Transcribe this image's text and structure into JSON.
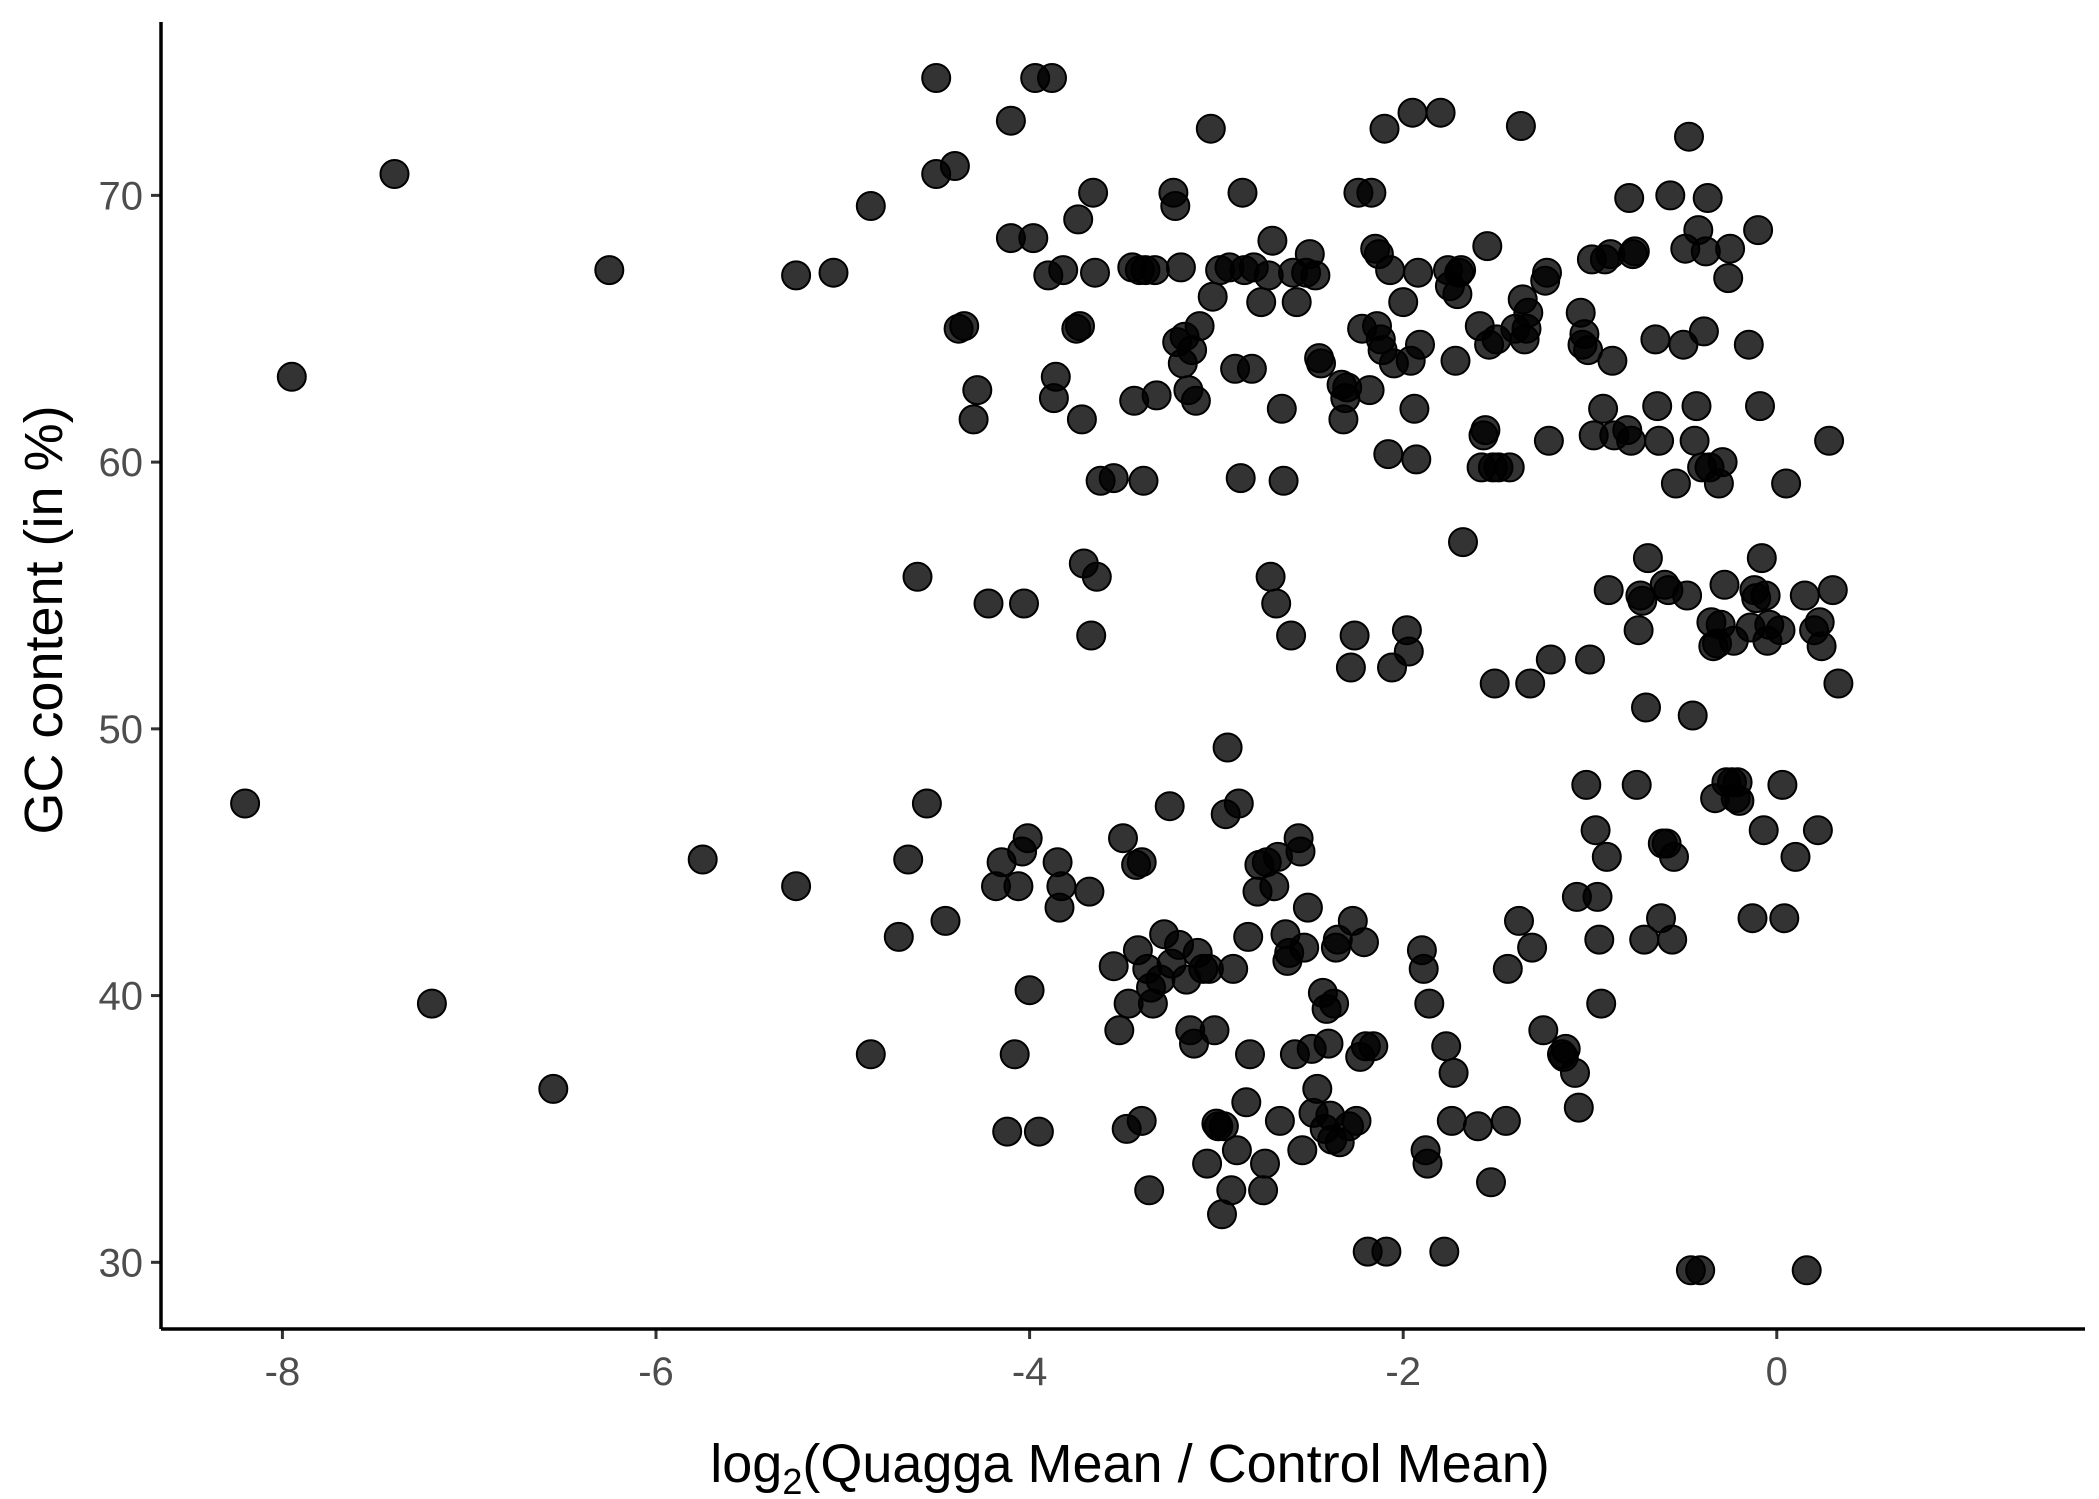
{
  "chart_data": {
    "type": "scatter",
    "title": "",
    "xlabel": {
      "prefix": "log",
      "subscript": "2",
      "body": "(Quagga Mean / Control Mean)"
    },
    "ylabel": "GC content (in %)",
    "xlim": [
      -8.65,
      1.65
    ],
    "ylim": [
      27.5,
      76.5
    ],
    "xticks": [
      {
        "value": -8,
        "label": "-8"
      },
      {
        "value": -6,
        "label": "-6"
      },
      {
        "value": -4,
        "label": "-4"
      },
      {
        "value": -2,
        "label": "-2"
      },
      {
        "value": 0,
        "label": "0"
      }
    ],
    "yticks": [
      {
        "value": 30,
        "label": "30"
      },
      {
        "value": 40,
        "label": "40"
      },
      {
        "value": 50,
        "label": "50"
      },
      {
        "value": 60,
        "label": "60"
      },
      {
        "value": 70,
        "label": "70"
      }
    ],
    "grid": false,
    "point_color": "#000000",
    "point_opacity": 0.8,
    "points": [
      [
        -8.2,
        47.2
      ],
      [
        -7.95,
        63.2
      ],
      [
        -7.4,
        70.8
      ],
      [
        -7.2,
        39.7
      ],
      [
        -6.55,
        36.5
      ],
      [
        -6.25,
        67.2
      ],
      [
        -5.75,
        45.1
      ],
      [
        -5.25,
        44.1
      ],
      [
        -5.25,
        67.0
      ],
      [
        -5.05,
        67.1
      ],
      [
        -4.85,
        69.6
      ],
      [
        -4.85,
        37.8
      ],
      [
        -4.7,
        42.2
      ],
      [
        -4.65,
        45.1
      ],
      [
        -4.6,
        55.7
      ],
      [
        -4.55,
        47.2
      ],
      [
        -4.5,
        74.4
      ],
      [
        -4.5,
        70.8
      ],
      [
        -4.45,
        42.8
      ],
      [
        -4.4,
        71.1
      ],
      [
        -4.38,
        65.0
      ],
      [
        -4.35,
        65.1
      ],
      [
        -4.3,
        61.6
      ],
      [
        -4.28,
        62.7
      ],
      [
        -4.22,
        54.7
      ],
      [
        -4.18,
        44.1
      ],
      [
        -4.15,
        45.0
      ],
      [
        -4.12,
        34.9
      ],
      [
        -4.1,
        72.8
      ],
      [
        -4.1,
        68.4
      ],
      [
        -4.08,
        37.8
      ],
      [
        -4.06,
        44.1
      ],
      [
        -4.04,
        45.4
      ],
      [
        -4.03,
        54.7
      ],
      [
        -4.01,
        45.9
      ],
      [
        -4.0,
        40.2
      ],
      [
        -3.98,
        68.4
      ],
      [
        -3.97,
        74.4
      ],
      [
        -3.95,
        34.9
      ],
      [
        -3.9,
        67.0
      ],
      [
        -3.88,
        74.4
      ],
      [
        -3.87,
        62.4
      ],
      [
        -3.86,
        63.2
      ],
      [
        -3.85,
        45.0
      ],
      [
        -3.84,
        43.3
      ],
      [
        -3.83,
        44.1
      ],
      [
        -3.82,
        67.2
      ],
      [
        -3.75,
        65.0
      ],
      [
        -3.74,
        69.1
      ],
      [
        -3.73,
        65.1
      ],
      [
        -3.72,
        61.6
      ],
      [
        -3.71,
        56.2
      ],
      [
        -3.68,
        43.9
      ],
      [
        -3.67,
        53.5
      ],
      [
        -3.66,
        70.1
      ],
      [
        -3.65,
        67.1
      ],
      [
        -3.64,
        55.7
      ],
      [
        -3.62,
        59.3
      ],
      [
        -3.55,
        59.4
      ],
      [
        -3.55,
        41.1
      ],
      [
        -3.52,
        38.7
      ],
      [
        -3.5,
        45.9
      ],
      [
        -3.48,
        35.0
      ],
      [
        -3.47,
        39.7
      ],
      [
        -3.45,
        67.3
      ],
      [
        -3.44,
        62.3
      ],
      [
        -3.43,
        44.9
      ],
      [
        -3.42,
        41.7
      ],
      [
        -3.41,
        67.2
      ],
      [
        -3.4,
        45.0
      ],
      [
        -3.4,
        35.3
      ],
      [
        -3.39,
        59.3
      ],
      [
        -3.38,
        67.2
      ],
      [
        -3.37,
        41.0
      ],
      [
        -3.36,
        32.7
      ],
      [
        -3.35,
        40.3
      ],
      [
        -3.34,
        39.7
      ],
      [
        -3.33,
        67.2
      ],
      [
        -3.32,
        62.5
      ],
      [
        -3.3,
        40.6
      ],
      [
        -3.28,
        42.3
      ],
      [
        -3.25,
        47.1
      ],
      [
        -3.24,
        41.2
      ],
      [
        -3.23,
        70.1
      ],
      [
        -3.22,
        69.6
      ],
      [
        -3.21,
        64.5
      ],
      [
        -3.2,
        41.9
      ],
      [
        -3.19,
        67.3
      ],
      [
        -3.18,
        63.7
      ],
      [
        -3.17,
        64.7
      ],
      [
        -3.16,
        40.6
      ],
      [
        -3.15,
        62.7
      ],
      [
        -3.14,
        38.7
      ],
      [
        -3.13,
        64.2
      ],
      [
        -3.12,
        38.2
      ],
      [
        -3.11,
        62.3
      ],
      [
        -3.1,
        41.6
      ],
      [
        -3.09,
        65.1
      ],
      [
        -3.07,
        41.0
      ],
      [
        -3.05,
        33.7
      ],
      [
        -3.04,
        41.0
      ],
      [
        -3.03,
        72.5
      ],
      [
        -3.02,
        66.2
      ],
      [
        -3.01,
        38.7
      ],
      [
        -3.0,
        35.2
      ],
      [
        -2.99,
        35.1
      ],
      [
        -2.98,
        67.2
      ],
      [
        -2.97,
        31.8
      ],
      [
        -2.96,
        35.1
      ],
      [
        -2.95,
        46.8
      ],
      [
        -2.94,
        49.3
      ],
      [
        -2.93,
        67.3
      ],
      [
        -2.92,
        32.7
      ],
      [
        -2.91,
        41.0
      ],
      [
        -2.9,
        63.5
      ],
      [
        -2.89,
        34.2
      ],
      [
        -2.88,
        47.2
      ],
      [
        -2.87,
        59.4
      ],
      [
        -2.86,
        70.1
      ],
      [
        -2.85,
        67.2
      ],
      [
        -2.84,
        36.0
      ],
      [
        -2.83,
        42.2
      ],
      [
        -2.82,
        37.8
      ],
      [
        -2.81,
        63.5
      ],
      [
        -2.8,
        67.3
      ],
      [
        -2.78,
        43.9
      ],
      [
        -2.77,
        44.9
      ],
      [
        -2.76,
        66.0
      ],
      [
        -2.75,
        32.7
      ],
      [
        -2.74,
        33.7
      ],
      [
        -2.73,
        45.0
      ],
      [
        -2.72,
        67.0
      ],
      [
        -2.71,
        55.7
      ],
      [
        -2.7,
        68.3
      ],
      [
        -2.69,
        44.1
      ],
      [
        -2.68,
        54.7
      ],
      [
        -2.67,
        45.2
      ],
      [
        -2.66,
        35.3
      ],
      [
        -2.65,
        62.0
      ],
      [
        -2.64,
        59.3
      ],
      [
        -2.63,
        42.3
      ],
      [
        -2.62,
        41.3
      ],
      [
        -2.61,
        41.6
      ],
      [
        -2.6,
        53.5
      ],
      [
        -2.59,
        67.1
      ],
      [
        -2.58,
        37.8
      ],
      [
        -2.57,
        66.0
      ],
      [
        -2.56,
        45.9
      ],
      [
        -2.55,
        45.4
      ],
      [
        -2.54,
        34.2
      ],
      [
        -2.53,
        41.8
      ],
      [
        -2.52,
        67.1
      ],
      [
        -2.51,
        43.3
      ],
      [
        -2.5,
        67.8
      ],
      [
        -2.49,
        38.0
      ],
      [
        -2.48,
        35.6
      ],
      [
        -2.47,
        67.0
      ],
      [
        -2.46,
        36.5
      ],
      [
        -2.45,
        63.9
      ],
      [
        -2.44,
        63.7
      ],
      [
        -2.43,
        40.1
      ],
      [
        -2.42,
        35.0
      ],
      [
        -2.41,
        39.5
      ],
      [
        -2.4,
        38.2
      ],
      [
        -2.39,
        35.5
      ],
      [
        -2.38,
        34.6
      ],
      [
        -2.37,
        39.7
      ],
      [
        -2.36,
        41.8
      ],
      [
        -2.35,
        42.1
      ],
      [
        -2.34,
        34.5
      ],
      [
        -2.33,
        62.9
      ],
      [
        -2.32,
        61.6
      ],
      [
        -2.31,
        62.4
      ],
      [
        -2.3,
        62.8
      ],
      [
        -2.29,
        35.1
      ],
      [
        -2.28,
        52.3
      ],
      [
        -2.27,
        42.8
      ],
      [
        -2.26,
        53.5
      ],
      [
        -2.25,
        35.3
      ],
      [
        -2.24,
        70.1
      ],
      [
        -2.23,
        37.7
      ],
      [
        -2.22,
        65.0
      ],
      [
        -2.21,
        42.0
      ],
      [
        -2.2,
        38.1
      ],
      [
        -2.19,
        30.4
      ],
      [
        -2.18,
        62.7
      ],
      [
        -2.17,
        70.1
      ],
      [
        -2.16,
        38.1
      ],
      [
        -2.15,
        68.0
      ],
      [
        -2.14,
        65.1
      ],
      [
        -2.13,
        67.8
      ],
      [
        -2.12,
        64.6
      ],
      [
        -2.11,
        64.2
      ],
      [
        -2.1,
        72.5
      ],
      [
        -2.09,
        30.4
      ],
      [
        -2.08,
        60.3
      ],
      [
        -2.07,
        67.2
      ],
      [
        -2.06,
        52.3
      ],
      [
        -2.05,
        63.7
      ],
      [
        -2.0,
        66.0
      ],
      [
        -1.98,
        53.7
      ],
      [
        -1.97,
        52.9
      ],
      [
        -1.96,
        63.8
      ],
      [
        -1.95,
        73.1
      ],
      [
        -1.94,
        62.0
      ],
      [
        -1.93,
        60.1
      ],
      [
        -1.92,
        67.1
      ],
      [
        -1.91,
        64.4
      ],
      [
        -1.9,
        41.7
      ],
      [
        -1.89,
        41.0
      ],
      [
        -1.88,
        34.2
      ],
      [
        -1.87,
        33.7
      ],
      [
        -1.86,
        39.7
      ],
      [
        -1.8,
        73.1
      ],
      [
        -1.78,
        30.4
      ],
      [
        -1.77,
        38.1
      ],
      [
        -1.76,
        67.2
      ],
      [
        -1.75,
        66.6
      ],
      [
        -1.74,
        35.3
      ],
      [
        -1.73,
        37.1
      ],
      [
        -1.72,
        63.8
      ],
      [
        -1.71,
        66.3
      ],
      [
        -1.7,
        67.1
      ],
      [
        -1.69,
        67.2
      ],
      [
        -1.68,
        57.0
      ],
      [
        -1.6,
        35.1
      ],
      [
        -1.59,
        65.1
      ],
      [
        -1.58,
        59.8
      ],
      [
        -1.57,
        61.0
      ],
      [
        -1.56,
        61.2
      ],
      [
        -1.55,
        68.1
      ],
      [
        -1.54,
        64.4
      ],
      [
        -1.53,
        33.0
      ],
      [
        -1.52,
        59.8
      ],
      [
        -1.51,
        51.7
      ],
      [
        -1.5,
        64.6
      ],
      [
        -1.49,
        59.8
      ],
      [
        -1.45,
        35.3
      ],
      [
        -1.44,
        41.0
      ],
      [
        -1.43,
        59.8
      ],
      [
        -1.4,
        65.0
      ],
      [
        -1.38,
        42.8
      ],
      [
        -1.37,
        72.6
      ],
      [
        -1.36,
        66.1
      ],
      [
        -1.35,
        64.6
      ],
      [
        -1.34,
        65.0
      ],
      [
        -1.33,
        65.6
      ],
      [
        -1.32,
        51.7
      ],
      [
        -1.31,
        41.8
      ],
      [
        -1.25,
        38.7
      ],
      [
        -1.24,
        66.8
      ],
      [
        -1.23,
        67.1
      ],
      [
        -1.22,
        60.8
      ],
      [
        -1.21,
        52.6
      ],
      [
        -1.15,
        37.8
      ],
      [
        -1.14,
        37.7
      ],
      [
        -1.13,
        38.0
      ],
      [
        -1.08,
        37.1
      ],
      [
        -1.07,
        43.7
      ],
      [
        -1.06,
        35.8
      ],
      [
        -1.05,
        65.6
      ],
      [
        -1.04,
        64.4
      ],
      [
        -1.03,
        64.8
      ],
      [
        -1.02,
        47.9
      ],
      [
        -1.01,
        64.2
      ],
      [
        -1.0,
        52.6
      ],
      [
        -0.99,
        67.6
      ],
      [
        -0.98,
        61.0
      ],
      [
        -0.97,
        46.2
      ],
      [
        -0.96,
        43.7
      ],
      [
        -0.95,
        42.1
      ],
      [
        -0.94,
        39.7
      ],
      [
        -0.93,
        62.0
      ],
      [
        -0.92,
        67.6
      ],
      [
        -0.91,
        45.2
      ],
      [
        -0.9,
        55.2
      ],
      [
        -0.89,
        67.8
      ],
      [
        -0.88,
        63.8
      ],
      [
        -0.87,
        61.0
      ],
      [
        -0.8,
        61.2
      ],
      [
        -0.79,
        69.9
      ],
      [
        -0.78,
        60.8
      ],
      [
        -0.77,
        67.8
      ],
      [
        -0.76,
        67.9
      ],
      [
        -0.75,
        47.9
      ],
      [
        -0.74,
        53.7
      ],
      [
        -0.73,
        55.0
      ],
      [
        -0.72,
        54.8
      ],
      [
        -0.71,
        42.1
      ],
      [
        -0.7,
        50.8
      ],
      [
        -0.69,
        56.4
      ],
      [
        -0.65,
        64.6
      ],
      [
        -0.64,
        62.1
      ],
      [
        -0.63,
        60.8
      ],
      [
        -0.62,
        42.9
      ],
      [
        -0.61,
        45.7
      ],
      [
        -0.6,
        55.4
      ],
      [
        -0.59,
        45.7
      ],
      [
        -0.58,
        55.2
      ],
      [
        -0.57,
        70.0
      ],
      [
        -0.56,
        42.1
      ],
      [
        -0.55,
        45.2
      ],
      [
        -0.54,
        59.2
      ],
      [
        -0.5,
        64.4
      ],
      [
        -0.49,
        68.0
      ],
      [
        -0.48,
        55.0
      ],
      [
        -0.47,
        72.2
      ],
      [
        -0.46,
        29.7
      ],
      [
        -0.45,
        50.5
      ],
      [
        -0.44,
        60.8
      ],
      [
        -0.43,
        62.1
      ],
      [
        -0.42,
        68.7
      ],
      [
        -0.41,
        29.7
      ],
      [
        -0.4,
        59.8
      ],
      [
        -0.39,
        64.9
      ],
      [
        -0.38,
        67.9
      ],
      [
        -0.37,
        69.9
      ],
      [
        -0.36,
        59.8
      ],
      [
        -0.35,
        54.0
      ],
      [
        -0.34,
        53.1
      ],
      [
        -0.33,
        47.4
      ],
      [
        -0.32,
        53.2
      ],
      [
        -0.31,
        59.2
      ],
      [
        -0.3,
        53.9
      ],
      [
        -0.29,
        60.0
      ],
      [
        -0.28,
        55.4
      ],
      [
        -0.27,
        48.0
      ],
      [
        -0.26,
        66.9
      ],
      [
        -0.25,
        68.0
      ],
      [
        -0.24,
        48.0
      ],
      [
        -0.23,
        53.3
      ],
      [
        -0.22,
        47.4
      ],
      [
        -0.21,
        48.0
      ],
      [
        -0.2,
        47.3
      ],
      [
        -0.15,
        64.4
      ],
      [
        -0.14,
        53.8
      ],
      [
        -0.13,
        42.9
      ],
      [
        -0.12,
        55.2
      ],
      [
        -0.11,
        54.9
      ],
      [
        -0.1,
        68.7
      ],
      [
        -0.09,
        62.1
      ],
      [
        -0.08,
        56.4
      ],
      [
        -0.07,
        46.2
      ],
      [
        -0.06,
        55.0
      ],
      [
        -0.05,
        53.3
      ],
      [
        -0.04,
        53.9
      ],
      [
        0.02,
        53.7
      ],
      [
        0.03,
        47.9
      ],
      [
        0.04,
        42.9
      ],
      [
        0.05,
        59.2
      ],
      [
        0.1,
        45.2
      ],
      [
        0.15,
        55.0
      ],
      [
        0.16,
        29.7
      ],
      [
        0.2,
        53.7
      ],
      [
        0.22,
        46.2
      ],
      [
        0.23,
        54.0
      ],
      [
        0.24,
        53.1
      ],
      [
        0.28,
        60.8
      ],
      [
        0.3,
        55.2
      ],
      [
        0.33,
        51.7
      ]
    ]
  }
}
